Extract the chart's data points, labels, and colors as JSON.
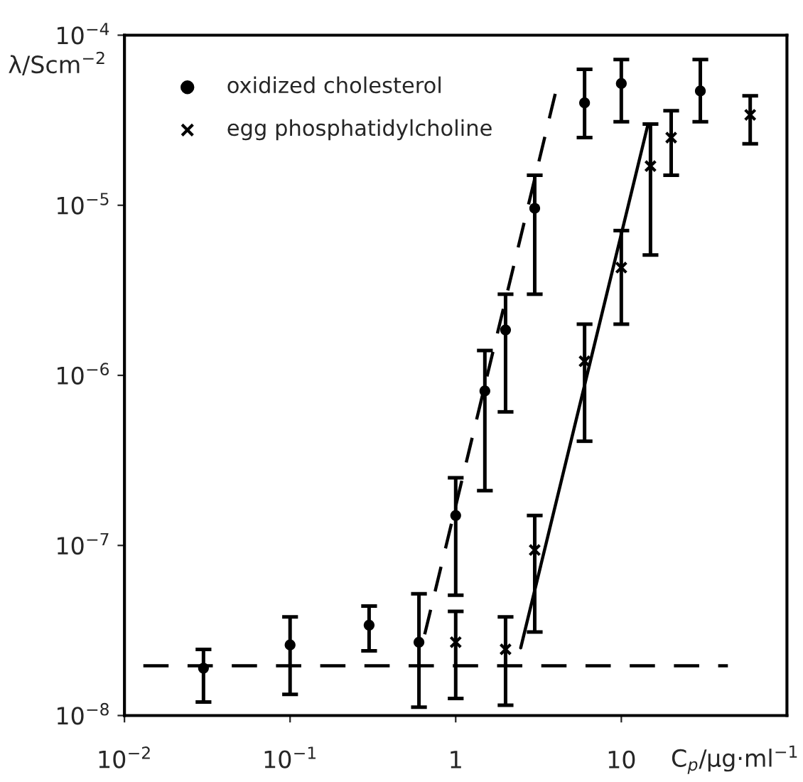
{
  "chart_data": {
    "type": "scatter",
    "xlabel": "C$_{p}$/µg·ml$^{−1}$",
    "ylabel": "λ/Scm$^{−2}$",
    "log": "xy",
    "grid": false,
    "legend": "top left",
    "xlim": [
      0.01,
      100
    ],
    "ylim": [
      1e-08,
      0.0001
    ],
    "xticks": [
      {
        "value": 0.01,
        "label": "10$^{−2}$"
      },
      {
        "value": 0.1,
        "label": "10$^{−1}$"
      },
      1,
      10
    ],
    "yticks": [
      {
        "value": 1e-08,
        "label": "10$^{−8}$"
      },
      {
        "value": 1e-07,
        "label": "10$^{−7}$"
      },
      {
        "value": 1e-06,
        "label": "10$^{−6}$"
      },
      {
        "value": 1e-05,
        "label": "10$^{−5}$"
      },
      {
        "value": 0.0001,
        "label": "10$^{−4}$"
      }
    ],
    "series": [
      {
        "name": "oxidized cholesterol",
        "marker": "circle",
        "color": "#000000",
        "x": [
          0.03,
          0.1,
          0.3,
          0.6,
          1,
          1.5,
          2,
          3,
          6,
          10,
          30
        ],
        "values": [
          1.9e-08,
          2.6e-08,
          3.4e-08,
          2.7e-08,
          1.5e-07,
          8.1e-07,
          1.85e-06,
          9.6e-06,
          4e-05,
          5.2e-05,
          4.7e-05
        ],
        "errors": [
          [
            1.2e-08,
            2.45e-08
          ],
          [
            1.33e-08,
            3.8e-08
          ],
          [
            2.4e-08,
            4.4e-08
          ],
          [
            1.12e-08,
            5.2e-08
          ],
          [
            5.1e-08,
            2.5e-07
          ],
          [
            2.1e-07,
            1.4e-06
          ],
          [
            6.1e-07,
            3e-06
          ],
          [
            3e-06,
            1.5e-05
          ],
          [
            2.5e-05,
            6.3e-05
          ],
          [
            3.1e-05,
            7.2e-05
          ],
          [
            3.1e-05,
            7.2e-05
          ]
        ]
      },
      {
        "name": "egg phosphatidylcholine",
        "marker": "cross",
        "color": "#000000",
        "x": [
          1,
          2,
          3,
          6,
          10,
          15,
          20,
          60
        ],
        "values": [
          2.7e-08,
          2.45e-08,
          9.4e-08,
          1.21e-06,
          4.3e-06,
          1.7e-05,
          2.5e-05,
          3.4e-05
        ],
        "errors": [
          [
            1.26e-08,
            4.1e-08
          ],
          [
            1.15e-08,
            3.8e-08
          ],
          [
            3.1e-08,
            1.5e-07
          ],
          [
            4.1e-07,
            2e-06
          ],
          [
            2e-06,
            7.1e-06
          ],
          [
            5.1e-06,
            3e-05
          ],
          [
            1.5e-05,
            3.6e-05
          ],
          [
            2.3e-05,
            4.4e-05
          ]
        ]
      },
      {
        "type": "line",
        "line_style": "dashed",
        "color": "#000000",
        "x": [
          0.013,
          44
        ],
        "values": [
          1.96e-08,
          1.96e-08
        ]
      },
      {
        "type": "line",
        "line_style": "dashed",
        "color": "#000000",
        "x": [
          0.65,
          4.05
        ],
        "values": [
          3e-08,
          4.8e-05
        ]
      },
      {
        "type": "line",
        "line_style": "solid",
        "color": "#000000",
        "x": [
          2.47,
          14.5
        ],
        "values": [
          2.5e-08,
          3e-05
        ]
      }
    ]
  }
}
